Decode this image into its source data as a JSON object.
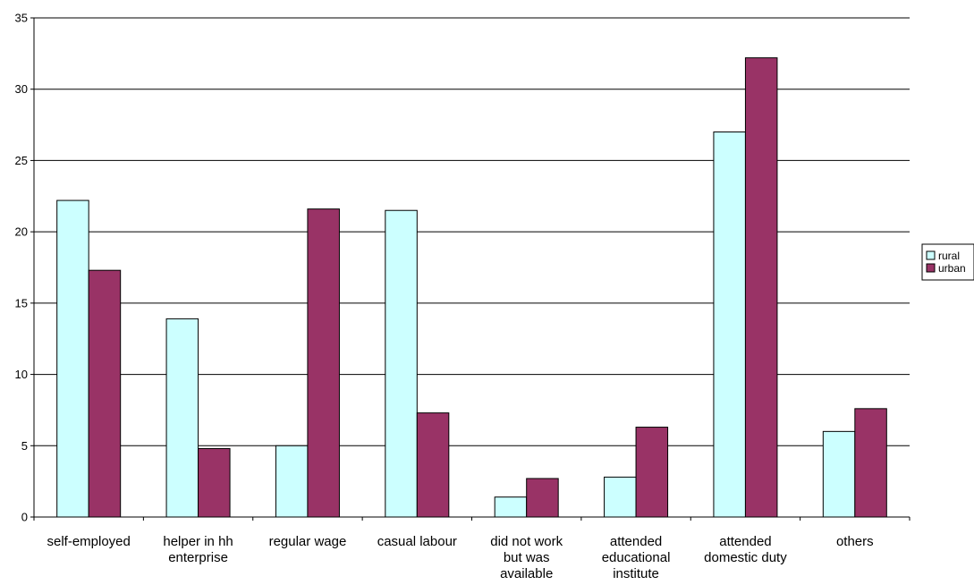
{
  "chart_data": {
    "type": "bar",
    "categories": [
      "self-employed",
      "helper in hh enterprise",
      "regular wage",
      "casual labour",
      "did not work but was available",
      "attended educational institute",
      "attended domestic duty",
      "others"
    ],
    "category_lines": [
      [
        "self-employed"
      ],
      [
        "helper in hh",
        "enterprise"
      ],
      [
        "regular wage"
      ],
      [
        "casual labour"
      ],
      [
        "did not work",
        "but was",
        "available"
      ],
      [
        "attended",
        "educational",
        "institute"
      ],
      [
        "attended",
        "domestic duty"
      ],
      [
        "others"
      ]
    ],
    "series": [
      {
        "name": "rural",
        "color": "#ccffff",
        "values": [
          22.2,
          13.9,
          5.0,
          21.5,
          1.4,
          2.8,
          27.0,
          6.0
        ]
      },
      {
        "name": "urban",
        "color": "#993366",
        "values": [
          17.3,
          4.8,
          21.6,
          7.3,
          2.7,
          6.3,
          32.2,
          7.6
        ]
      }
    ],
    "ylim": [
      0,
      35
    ],
    "yticks": [
      0,
      5,
      10,
      15,
      20,
      25,
      30,
      35
    ],
    "grid": true,
    "legend": "right",
    "title": "",
    "xlabel": "",
    "ylabel": ""
  }
}
